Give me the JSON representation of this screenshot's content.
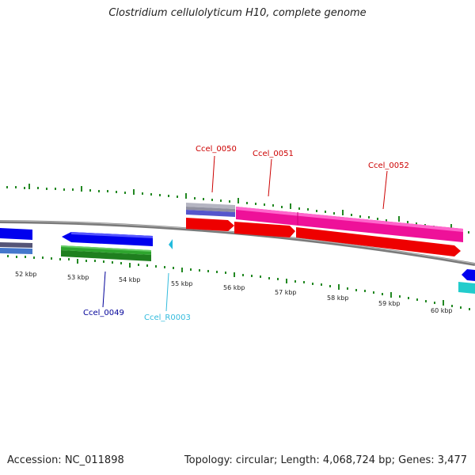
{
  "title": "Clostridium cellulolyticum H10, complete genome",
  "footer": {
    "accession": "Accession: NC_011898",
    "summary": "Topology: circular; Length: 4,068,724 bp; Genes: 3,477"
  },
  "kbp_ticks": [
    "52 kbp",
    "53 kbp",
    "54 kbp",
    "55 kbp",
    "56 kbp",
    "57 kbp",
    "58 kbp",
    "59 kbp",
    "60 kbp"
  ],
  "gene_labels": {
    "g0050": "Ccel_0050",
    "g0051": "Ccel_0051",
    "g0052": "Ccel_0052",
    "g0049": "Ccel_0049",
    "r0003": "Ccel_R0003"
  },
  "colors": {
    "backbone": "#7a7a7a",
    "cds_blue": "#0000ee",
    "cds_red": "#ee0000",
    "cds_pink": "#ee1199",
    "cds_green": "#2ea52e",
    "rna_cyan": "#22bbdd",
    "tick_green": "#228822",
    "label_red": "#cc0000",
    "label_navy": "#000099",
    "label_cyan": "#33bbdd"
  }
}
